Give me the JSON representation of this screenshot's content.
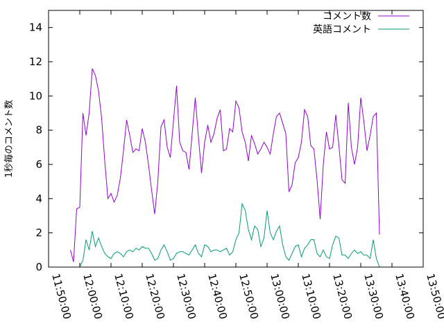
{
  "chart_data": {
    "type": "line",
    "title": "",
    "xlabel": "",
    "ylabel": "1秒毎のコメント数",
    "ylim": [
      0,
      15
    ],
    "xlim": [
      "11:50:00",
      "13:50:00"
    ],
    "grid": false,
    "legend_position": "top-right",
    "x_ticks": [
      "11:50:00",
      "12:00:00",
      "12:10:00",
      "12:20:00",
      "12:30:00",
      "12:40:00",
      "12:50:00",
      "13:00:00",
      "13:10:00",
      "13:20:00",
      "13:30:00",
      "13:40:00",
      "13:50:00"
    ],
    "y_ticks": [
      0,
      2,
      4,
      6,
      8,
      10,
      12,
      14
    ],
    "x_start": "11:57:00",
    "x_step_seconds": 60,
    "series": [
      {
        "name": "コメント数",
        "color": "#9400d3",
        "values": [
          1.0,
          0.3,
          3.4,
          3.5,
          9.0,
          7.7,
          9.0,
          11.6,
          11.2,
          10.3,
          8.7,
          6.2,
          4.0,
          4.3,
          3.8,
          4.2,
          5.2,
          6.8,
          8.6,
          7.7,
          6.7,
          6.9,
          6.8,
          8.1,
          7.3,
          6.0,
          4.5,
          3.1,
          5.0,
          8.2,
          8.6,
          7.0,
          6.4,
          8.5,
          10.6,
          7.3,
          6.8,
          6.7,
          5.7,
          7.8,
          9.9,
          7.6,
          5.5,
          7.3,
          8.3,
          7.3,
          7.8,
          8.7,
          9.2,
          6.8,
          6.9,
          8.1,
          7.9,
          9.7,
          9.3,
          7.9,
          7.3,
          6.2,
          7.7,
          7.2,
          6.6,
          6.9,
          7.3,
          7.0,
          6.6,
          7.8,
          8.8,
          9.0,
          8.4,
          7.8,
          4.4,
          4.8,
          6.1,
          6.4,
          7.3,
          9.2,
          8.8,
          7.1,
          6.9,
          5.1,
          2.8,
          6.0,
          7.9,
          6.9,
          7.0,
          8.9,
          7.1,
          5.1,
          4.9,
          9.6,
          7.0,
          6.0,
          7.0,
          9.9,
          8.5,
          6.8,
          7.7,
          8.8,
          9.0,
          1.9
        ]
      },
      {
        "name": "英語コメント",
        "color": "#009e73",
        "values": [
          null,
          null,
          null,
          0.0,
          0.4,
          1.6,
          1.0,
          2.1,
          1.2,
          1.7,
          1.2,
          0.8,
          0.6,
          0.5,
          0.8,
          0.9,
          0.8,
          0.6,
          0.9,
          1.0,
          0.9,
          1.1,
          1.0,
          1.2,
          1.1,
          1.1,
          0.8,
          0.4,
          0.5,
          1.0,
          1.3,
          0.9,
          0.4,
          0.5,
          0.8,
          0.9,
          0.9,
          0.8,
          0.7,
          1.0,
          1.3,
          0.8,
          0.6,
          1.3,
          1.2,
          0.9,
          1.0,
          1.0,
          0.9,
          1.0,
          1.1,
          0.7,
          0.9,
          1.6,
          2.0,
          3.7,
          3.3,
          2.2,
          1.6,
          2.4,
          2.2,
          1.2,
          1.7,
          3.3,
          2.0,
          1.6,
          2.1,
          2.4,
          1.3,
          0.6,
          0.4,
          0.8,
          1.2,
          1.3,
          0.6,
          1.1,
          1.3,
          1.6,
          1.6,
          0.8,
          0.6,
          1.0,
          0.6,
          0.5,
          1.3,
          1.8,
          1.7,
          0.7,
          0.7,
          0.5,
          0.8,
          1.0,
          0.8,
          0.9,
          0.7,
          0.7,
          0.5,
          1.6,
          0.5,
          0.0
        ]
      }
    ]
  }
}
